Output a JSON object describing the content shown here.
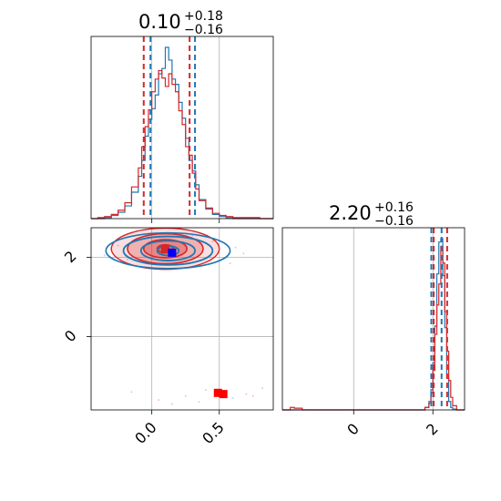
{
  "chart_data": {
    "type": "corner",
    "colors": {
      "blue": "#1f77b4",
      "red": "#d62728",
      "grid": "#b0b0b0"
    },
    "panels": [
      {
        "id": "x-hist",
        "type": "histogram",
        "title": {
          "median": "0.10",
          "plus": "+0.18",
          "minus": "−0.16"
        },
        "xlim": [
          -0.45,
          0.9
        ],
        "x_ticks": [
          0.0,
          0.5
        ],
        "x_tick_labels": [
          "",
          ""
        ],
        "grid": true,
        "bins": [
          -0.45,
          -0.4,
          -0.35,
          -0.3,
          -0.25,
          -0.2,
          -0.15,
          -0.1,
          -0.075,
          -0.05,
          -0.025,
          0.0,
          0.025,
          0.05,
          0.075,
          0.1,
          0.125,
          0.15,
          0.175,
          0.2,
          0.225,
          0.25,
          0.275,
          0.3,
          0.325,
          0.35,
          0.4,
          0.45,
          0.5,
          0.55,
          0.6,
          0.7,
          0.8,
          0.9
        ],
        "series": [
          {
            "name": "",
            "color": "#1f77b4",
            "counts": [
              0,
              0,
              1,
              3,
              6,
              12,
              25,
              40,
              55,
              78,
              94,
              104,
              117,
              137,
              142,
              162,
              150,
              132,
              127,
              110,
              95,
              76,
              55,
              45,
              32,
              18,
              9,
              4,
              2,
              1,
              0,
              0,
              0
            ]
          },
          {
            "name": "",
            "color": "#d62728",
            "counts": [
              0,
              1,
              2,
              4,
              8,
              15,
              30,
              48,
              68,
              87,
              103,
              120,
              132,
              140,
              133,
              125,
              137,
              127,
              120,
              102,
              89,
              68,
              60,
              43,
              28,
              17,
              10,
              5,
              3,
              2,
              1,
              1,
              0
            ]
          }
        ],
        "quantile_lines": [
          {
            "x": -0.06,
            "color": "#d62728"
          },
          {
            "x": -0.01,
            "color": "#1f77b4"
          },
          {
            "x": 0.28,
            "color": "#d62728"
          },
          {
            "x": 0.32,
            "color": "#1f77b4"
          }
        ]
      },
      {
        "id": "y-hist",
        "type": "histogram",
        "title": {
          "median": "2.20",
          "plus": "+0.16",
          "minus": "−0.16"
        },
        "xlim": [
          -1.8,
          2.8
        ],
        "x_ticks": [
          0,
          2
        ],
        "x_tick_labels": [
          "0",
          "2"
        ],
        "grid": true,
        "bins": [
          -1.8,
          -1.6,
          -1.5,
          -1.3,
          1.8,
          1.9,
          1.95,
          2.0,
          2.05,
          2.1,
          2.15,
          2.2,
          2.25,
          2.3,
          2.35,
          2.4,
          2.45,
          2.5,
          2.6,
          2.8
        ],
        "series": [
          {
            "name": "",
            "color": "#1f77b4",
            "counts": [
              0,
              0,
              0,
              0,
              3,
              10,
              24,
              56,
              100,
              162,
              200,
              204,
              160,
              98,
              38,
              10,
              3,
              1,
              0
            ]
          },
          {
            "name": "",
            "color": "#d62728",
            "counts": [
              0,
              3,
              2,
              0,
              3,
              8,
              20,
              47,
              90,
              125,
              150,
              195,
              175,
              117,
              70,
              35,
              15,
              5,
              0
            ]
          }
        ],
        "quantile_lines": [
          {
            "x": 1.96,
            "color": "#1f77b4"
          },
          {
            "x": 2.02,
            "color": "#d62728"
          },
          {
            "x": 2.22,
            "color": "#1f77b4"
          },
          {
            "x": 2.36,
            "color": "#d62728"
          }
        ]
      },
      {
        "id": "xy-2d",
        "type": "density2d",
        "xlim": [
          -0.45,
          0.9
        ],
        "ylim": [
          -1.85,
          2.75
        ],
        "x_ticks": [
          0.0,
          0.5
        ],
        "x_tick_labels": [
          "0.0",
          "0.5"
        ],
        "y_ticks": [
          0,
          2
        ],
        "y_tick_labels": [
          "0",
          "2"
        ],
        "grid": true,
        "contours": {
          "red": {
            "center": [
              0.1,
              2.22
            ],
            "levels": [
              {
                "rx": 0.06,
                "ry": 0.1
              },
              {
                "rx": 0.16,
                "ry": 0.23
              },
              {
                "rx": 0.28,
                "ry": 0.38
              },
              {
                "rx": 0.4,
                "ry": 0.52
              }
            ]
          },
          "blue": {
            "center": [
              0.12,
              2.17
            ],
            "levels": [
              {
                "rx": 0.08,
                "ry": 0.12
              },
              {
                "rx": 0.2,
                "ry": 0.25
              },
              {
                "rx": 0.33,
                "ry": 0.36
              },
              {
                "rx": 0.46,
                "ry": 0.45
              }
            ]
          }
        },
        "markers": [
          {
            "x": 0.1,
            "y": 2.2,
            "color": "#d62728"
          },
          {
            "x": 0.15,
            "y": 2.12,
            "color": "#0000ff"
          },
          {
            "x": 0.49,
            "y": -1.42,
            "color": "#ff0000"
          },
          {
            "x": 0.53,
            "y": -1.45,
            "color": "#ff0000"
          }
        ],
        "scatter": {
          "top": {
            "x": [
              -0.35,
              -0.25,
              -0.18,
              0.45,
              0.55,
              0.62,
              0.68,
              0.3,
              -0.3,
              0.58
            ],
            "y": [
              2.05,
              2.3,
              1.95,
              2.4,
              2.0,
              2.25,
              2.1,
              2.55,
              2.2,
              1.85
            ]
          },
          "bottom": {
            "x": [
              -0.15,
              0.05,
              0.25,
              0.4,
              0.6,
              0.7,
              0.82,
              0.15,
              0.35,
              0.75
            ],
            "y": [
              -1.4,
              -1.6,
              -1.5,
              -1.35,
              -1.55,
              -1.45,
              -1.3,
              -1.7,
              -1.65,
              -1.5
            ]
          }
        }
      }
    ]
  }
}
